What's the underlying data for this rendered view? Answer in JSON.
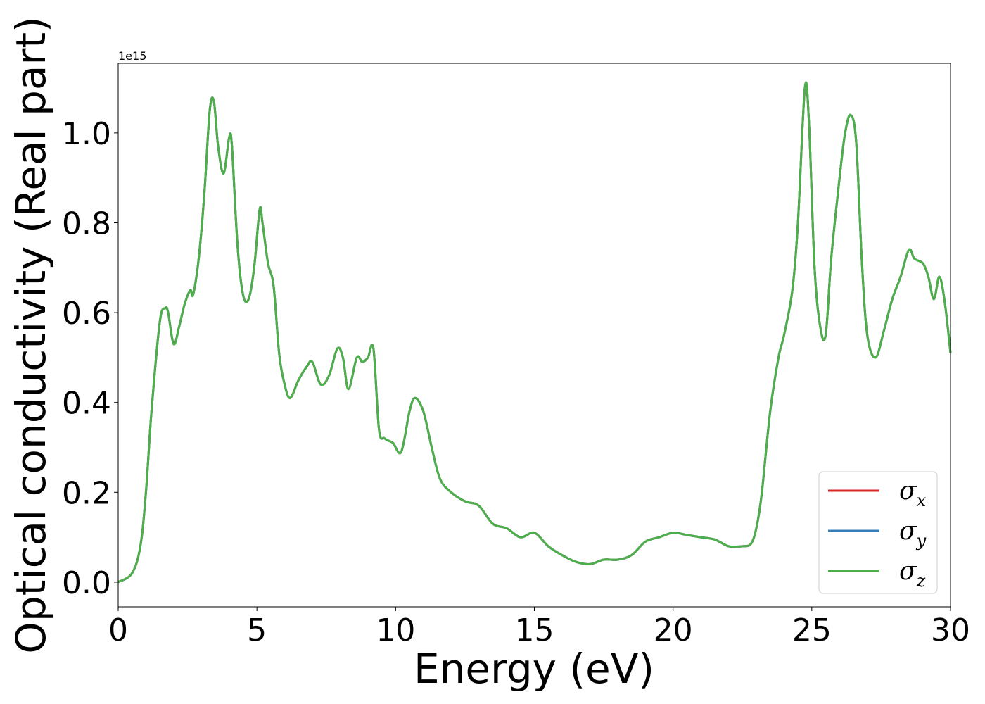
{
  "chart_data": {
    "type": "line",
    "title": "",
    "xlabel": "Energy (eV)",
    "ylabel": "Optical conductivity (Real part)",
    "y_offset_text": "1e15",
    "y_scale_factor": 1000000000000000.0,
    "xlim": [
      0,
      30
    ],
    "ylim": [
      -0.055,
      1.155
    ],
    "xticks": [
      0,
      5,
      10,
      15,
      20,
      25,
      30
    ],
    "xtick_labels": [
      "0",
      "5",
      "10",
      "15",
      "20",
      "25",
      "30"
    ],
    "yticks": [
      0.0,
      0.2,
      0.4,
      0.6,
      0.8,
      1.0
    ],
    "ytick_labels": [
      "0.0",
      "0.2",
      "0.4",
      "0.6",
      "0.8",
      "1.0"
    ],
    "grid": false,
    "legend_position": "lower right",
    "x": [
      0,
      0.5,
      0.8,
      1.0,
      1.2,
      1.5,
      1.7,
      1.8,
      2.0,
      2.2,
      2.4,
      2.6,
      2.7,
      2.9,
      3.1,
      3.3,
      3.45,
      3.6,
      3.8,
      4.0,
      4.1,
      4.3,
      4.5,
      4.7,
      4.9,
      5.1,
      5.2,
      5.4,
      5.6,
      5.8,
      6.0,
      6.2,
      6.5,
      6.8,
      7.0,
      7.3,
      7.6,
      7.9,
      8.1,
      8.3,
      8.6,
      8.8,
      9.0,
      9.2,
      9.4,
      9.6,
      9.9,
      10.2,
      10.5,
      10.7,
      11.0,
      11.3,
      11.6,
      12.0,
      12.5,
      13.0,
      13.5,
      14.0,
      14.5,
      15.0,
      15.5,
      16.0,
      16.5,
      17.0,
      17.5,
      18.0,
      18.5,
      19.0,
      19.5,
      20.0,
      20.5,
      21.0,
      21.5,
      22.0,
      22.5,
      22.8,
      23.0,
      23.2,
      23.5,
      23.8,
      24.0,
      24.3,
      24.5,
      24.75,
      24.9,
      25.1,
      25.3,
      25.5,
      25.7,
      26.0,
      26.2,
      26.4,
      26.6,
      26.8,
      27.0,
      27.3,
      27.6,
      27.9,
      28.2,
      28.5,
      28.7,
      29.0,
      29.2,
      29.4,
      29.6,
      29.8,
      30.0
    ],
    "series": [
      {
        "name": "σ_x",
        "color": "#d62728",
        "values": [
          0.0,
          0.02,
          0.08,
          0.2,
          0.38,
          0.58,
          0.61,
          0.6,
          0.53,
          0.57,
          0.62,
          0.65,
          0.64,
          0.72,
          0.86,
          1.05,
          1.07,
          0.97,
          0.91,
          0.99,
          0.97,
          0.75,
          0.64,
          0.63,
          0.7,
          0.83,
          0.8,
          0.71,
          0.66,
          0.51,
          0.44,
          0.41,
          0.45,
          0.48,
          0.49,
          0.44,
          0.46,
          0.52,
          0.5,
          0.43,
          0.5,
          0.49,
          0.5,
          0.52,
          0.34,
          0.32,
          0.31,
          0.29,
          0.38,
          0.41,
          0.38,
          0.3,
          0.23,
          0.2,
          0.18,
          0.17,
          0.13,
          0.12,
          0.1,
          0.11,
          0.08,
          0.06,
          0.045,
          0.04,
          0.05,
          0.05,
          0.06,
          0.09,
          0.1,
          0.11,
          0.105,
          0.1,
          0.095,
          0.08,
          0.08,
          0.085,
          0.12,
          0.2,
          0.38,
          0.5,
          0.55,
          0.65,
          0.8,
          1.1,
          1.02,
          0.7,
          0.57,
          0.55,
          0.72,
          0.9,
          1.0,
          1.04,
          0.98,
          0.72,
          0.55,
          0.5,
          0.56,
          0.63,
          0.68,
          0.74,
          0.72,
          0.71,
          0.68,
          0.63,
          0.68,
          0.62,
          0.51
        ]
      },
      {
        "name": "σ_y",
        "color": "#377eb8",
        "values": [
          0.0,
          0.02,
          0.08,
          0.2,
          0.38,
          0.58,
          0.61,
          0.6,
          0.53,
          0.57,
          0.62,
          0.65,
          0.64,
          0.72,
          0.86,
          1.05,
          1.07,
          0.97,
          0.91,
          0.99,
          0.97,
          0.75,
          0.64,
          0.63,
          0.7,
          0.83,
          0.8,
          0.71,
          0.66,
          0.51,
          0.44,
          0.41,
          0.45,
          0.48,
          0.49,
          0.44,
          0.46,
          0.52,
          0.5,
          0.43,
          0.5,
          0.49,
          0.5,
          0.52,
          0.34,
          0.32,
          0.31,
          0.29,
          0.38,
          0.41,
          0.38,
          0.3,
          0.23,
          0.2,
          0.18,
          0.17,
          0.13,
          0.12,
          0.1,
          0.11,
          0.08,
          0.06,
          0.045,
          0.04,
          0.05,
          0.05,
          0.06,
          0.09,
          0.1,
          0.11,
          0.105,
          0.1,
          0.095,
          0.08,
          0.08,
          0.085,
          0.12,
          0.2,
          0.38,
          0.5,
          0.55,
          0.65,
          0.8,
          1.1,
          1.02,
          0.7,
          0.57,
          0.55,
          0.72,
          0.9,
          1.0,
          1.04,
          0.98,
          0.72,
          0.55,
          0.5,
          0.56,
          0.63,
          0.68,
          0.74,
          0.72,
          0.71,
          0.68,
          0.63,
          0.68,
          0.62,
          0.51
        ]
      },
      {
        "name": "σ_z",
        "color": "#4daf4a",
        "values": [
          0.0,
          0.02,
          0.08,
          0.2,
          0.38,
          0.58,
          0.61,
          0.6,
          0.53,
          0.57,
          0.62,
          0.65,
          0.64,
          0.72,
          0.86,
          1.05,
          1.07,
          0.97,
          0.91,
          0.99,
          0.97,
          0.75,
          0.64,
          0.63,
          0.7,
          0.83,
          0.8,
          0.71,
          0.66,
          0.51,
          0.44,
          0.41,
          0.45,
          0.48,
          0.49,
          0.44,
          0.46,
          0.52,
          0.5,
          0.43,
          0.5,
          0.49,
          0.5,
          0.52,
          0.34,
          0.32,
          0.31,
          0.29,
          0.38,
          0.41,
          0.38,
          0.3,
          0.23,
          0.2,
          0.18,
          0.17,
          0.13,
          0.12,
          0.1,
          0.11,
          0.08,
          0.06,
          0.045,
          0.04,
          0.05,
          0.05,
          0.06,
          0.09,
          0.1,
          0.11,
          0.105,
          0.1,
          0.095,
          0.08,
          0.08,
          0.085,
          0.12,
          0.2,
          0.38,
          0.5,
          0.55,
          0.65,
          0.8,
          1.1,
          1.02,
          0.7,
          0.57,
          0.55,
          0.72,
          0.9,
          1.0,
          1.04,
          0.98,
          0.72,
          0.55,
          0.5,
          0.56,
          0.63,
          0.68,
          0.74,
          0.72,
          0.71,
          0.68,
          0.63,
          0.68,
          0.62,
          0.51
        ]
      }
    ],
    "legend": [
      {
        "symbol": "σ",
        "sub": "x"
      },
      {
        "symbol": "σ",
        "sub": "y"
      },
      {
        "symbol": "σ",
        "sub": "z"
      }
    ]
  }
}
